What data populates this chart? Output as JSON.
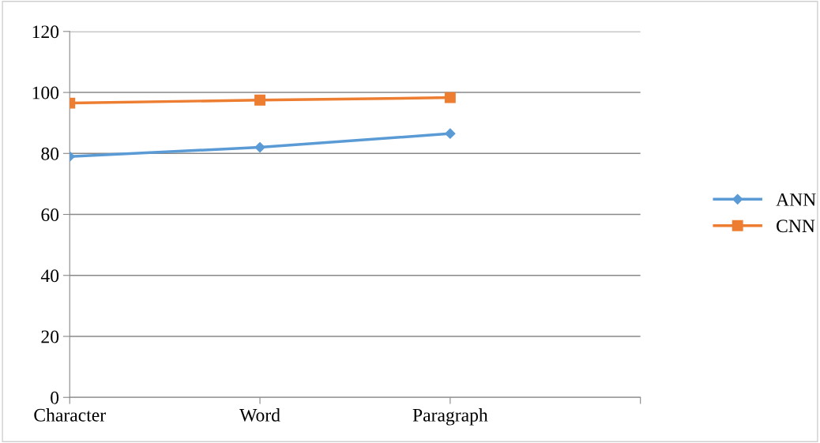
{
  "chart_data": {
    "type": "line",
    "categories": [
      "Character",
      "Word",
      "Paragraph",
      null
    ],
    "series": [
      {
        "name": "ANN",
        "color": "#5b9bd5",
        "marker": "diamond",
        "values": [
          79,
          82,
          86.5,
          null
        ]
      },
      {
        "name": "CNN",
        "color": "#ed7d31",
        "marker": "square",
        "values": [
          96.5,
          97.5,
          98.3,
          null
        ]
      }
    ],
    "ylim": [
      0,
      120
    ],
    "yticks": [
      0,
      20,
      40,
      60,
      80,
      100,
      120
    ],
    "grid": "y",
    "legend": "right",
    "line_style": "solid"
  }
}
